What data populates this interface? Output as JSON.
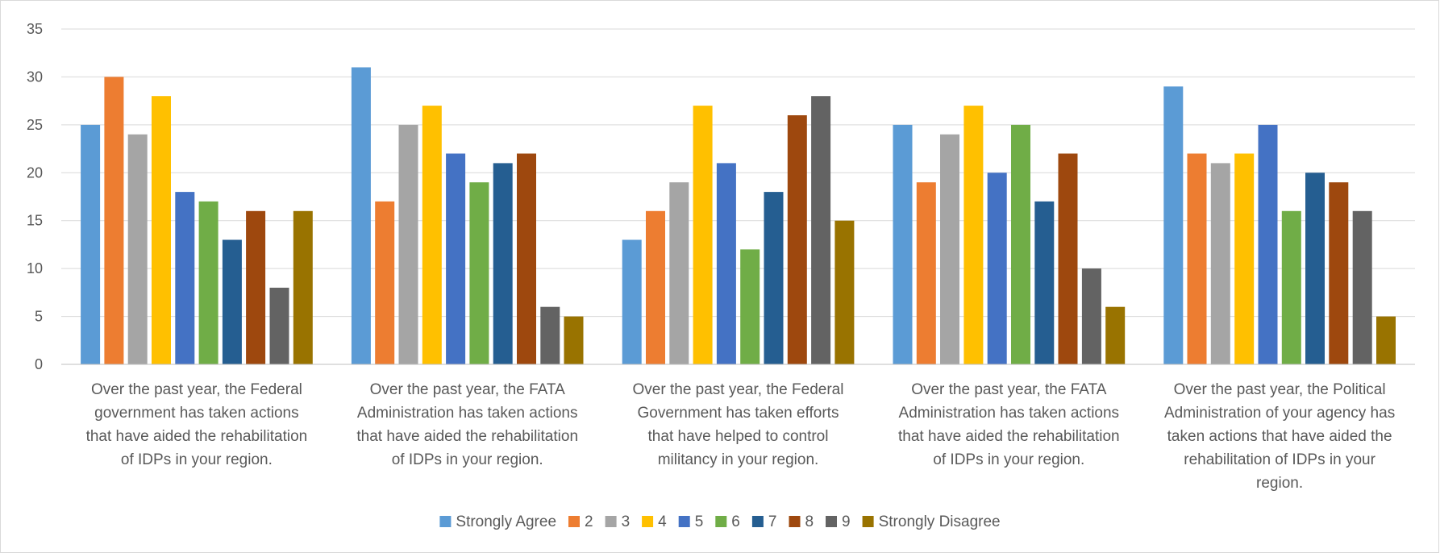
{
  "chart_data": {
    "type": "bar",
    "title": "",
    "xlabel": "",
    "ylabel": "",
    "ylim": [
      0,
      35
    ],
    "y_ticks": [
      0,
      5,
      10,
      15,
      20,
      25,
      30,
      35
    ],
    "grid": true,
    "legend_position": "bottom",
    "categories": [
      "Over the past year, the Federal government has taken actions that have aided the rehabilitation of IDPs in your region.",
      "Over the past year, the FATA Administration has taken actions that have aided the rehabilitation of IDPs in your region.",
      "Over the past year, the Federal Government has taken efforts that have helped to control militancy in your region.",
      "Over the past year, the FATA Administration has taken actions that have aided the rehabilitation of IDPs in your region.",
      "Over the past year, the Political Administration of your agency has taken actions that have aided the rehabilitation of IDPs in your region."
    ],
    "category_lines": [
      [
        "Over the past year, the Federal",
        "government has taken actions",
        "that have aided the rehabilitation",
        "of IDPs in your region."
      ],
      [
        "Over the past year, the FATA",
        "Administration has taken actions",
        "that have aided the rehabilitation",
        "of IDPs in your region."
      ],
      [
        "Over the past year, the Federal",
        "Government has taken efforts",
        "that have helped to control",
        "militancy in your region."
      ],
      [
        "Over the past year, the FATA",
        "Administration has taken actions",
        "that have aided the rehabilitation",
        "of IDPs in your region."
      ],
      [
        "Over the past year, the Political",
        "Administration of your agency has",
        "taken actions that have aided the",
        "rehabilitation of IDPs in your",
        "region."
      ]
    ],
    "series": [
      {
        "name": "Strongly Agree",
        "color": "#5b9bd5",
        "values": [
          25,
          31,
          13,
          25,
          29
        ]
      },
      {
        "name": "2",
        "color": "#ed7d31",
        "values": [
          30,
          17,
          16,
          19,
          22
        ]
      },
      {
        "name": "3",
        "color": "#a5a5a5",
        "values": [
          24,
          25,
          19,
          24,
          21
        ]
      },
      {
        "name": "4",
        "color": "#ffc000",
        "values": [
          28,
          27,
          27,
          27,
          22
        ]
      },
      {
        "name": "5",
        "color": "#4472c4",
        "values": [
          18,
          22,
          21,
          20,
          25
        ]
      },
      {
        "name": "6",
        "color": "#70ad47",
        "values": [
          17,
          19,
          12,
          25,
          16
        ]
      },
      {
        "name": "7",
        "color": "#255e91",
        "values": [
          13,
          21,
          18,
          17,
          20
        ]
      },
      {
        "name": "8",
        "color": "#9e480e",
        "values": [
          16,
          22,
          26,
          22,
          19
        ]
      },
      {
        "name": "9",
        "color": "#636363",
        "values": [
          8,
          6,
          28,
          10,
          16
        ]
      },
      {
        "name": "Strongly Disagree",
        "color": "#997300",
        "values": [
          16,
          5,
          15,
          6,
          5
        ]
      }
    ]
  }
}
